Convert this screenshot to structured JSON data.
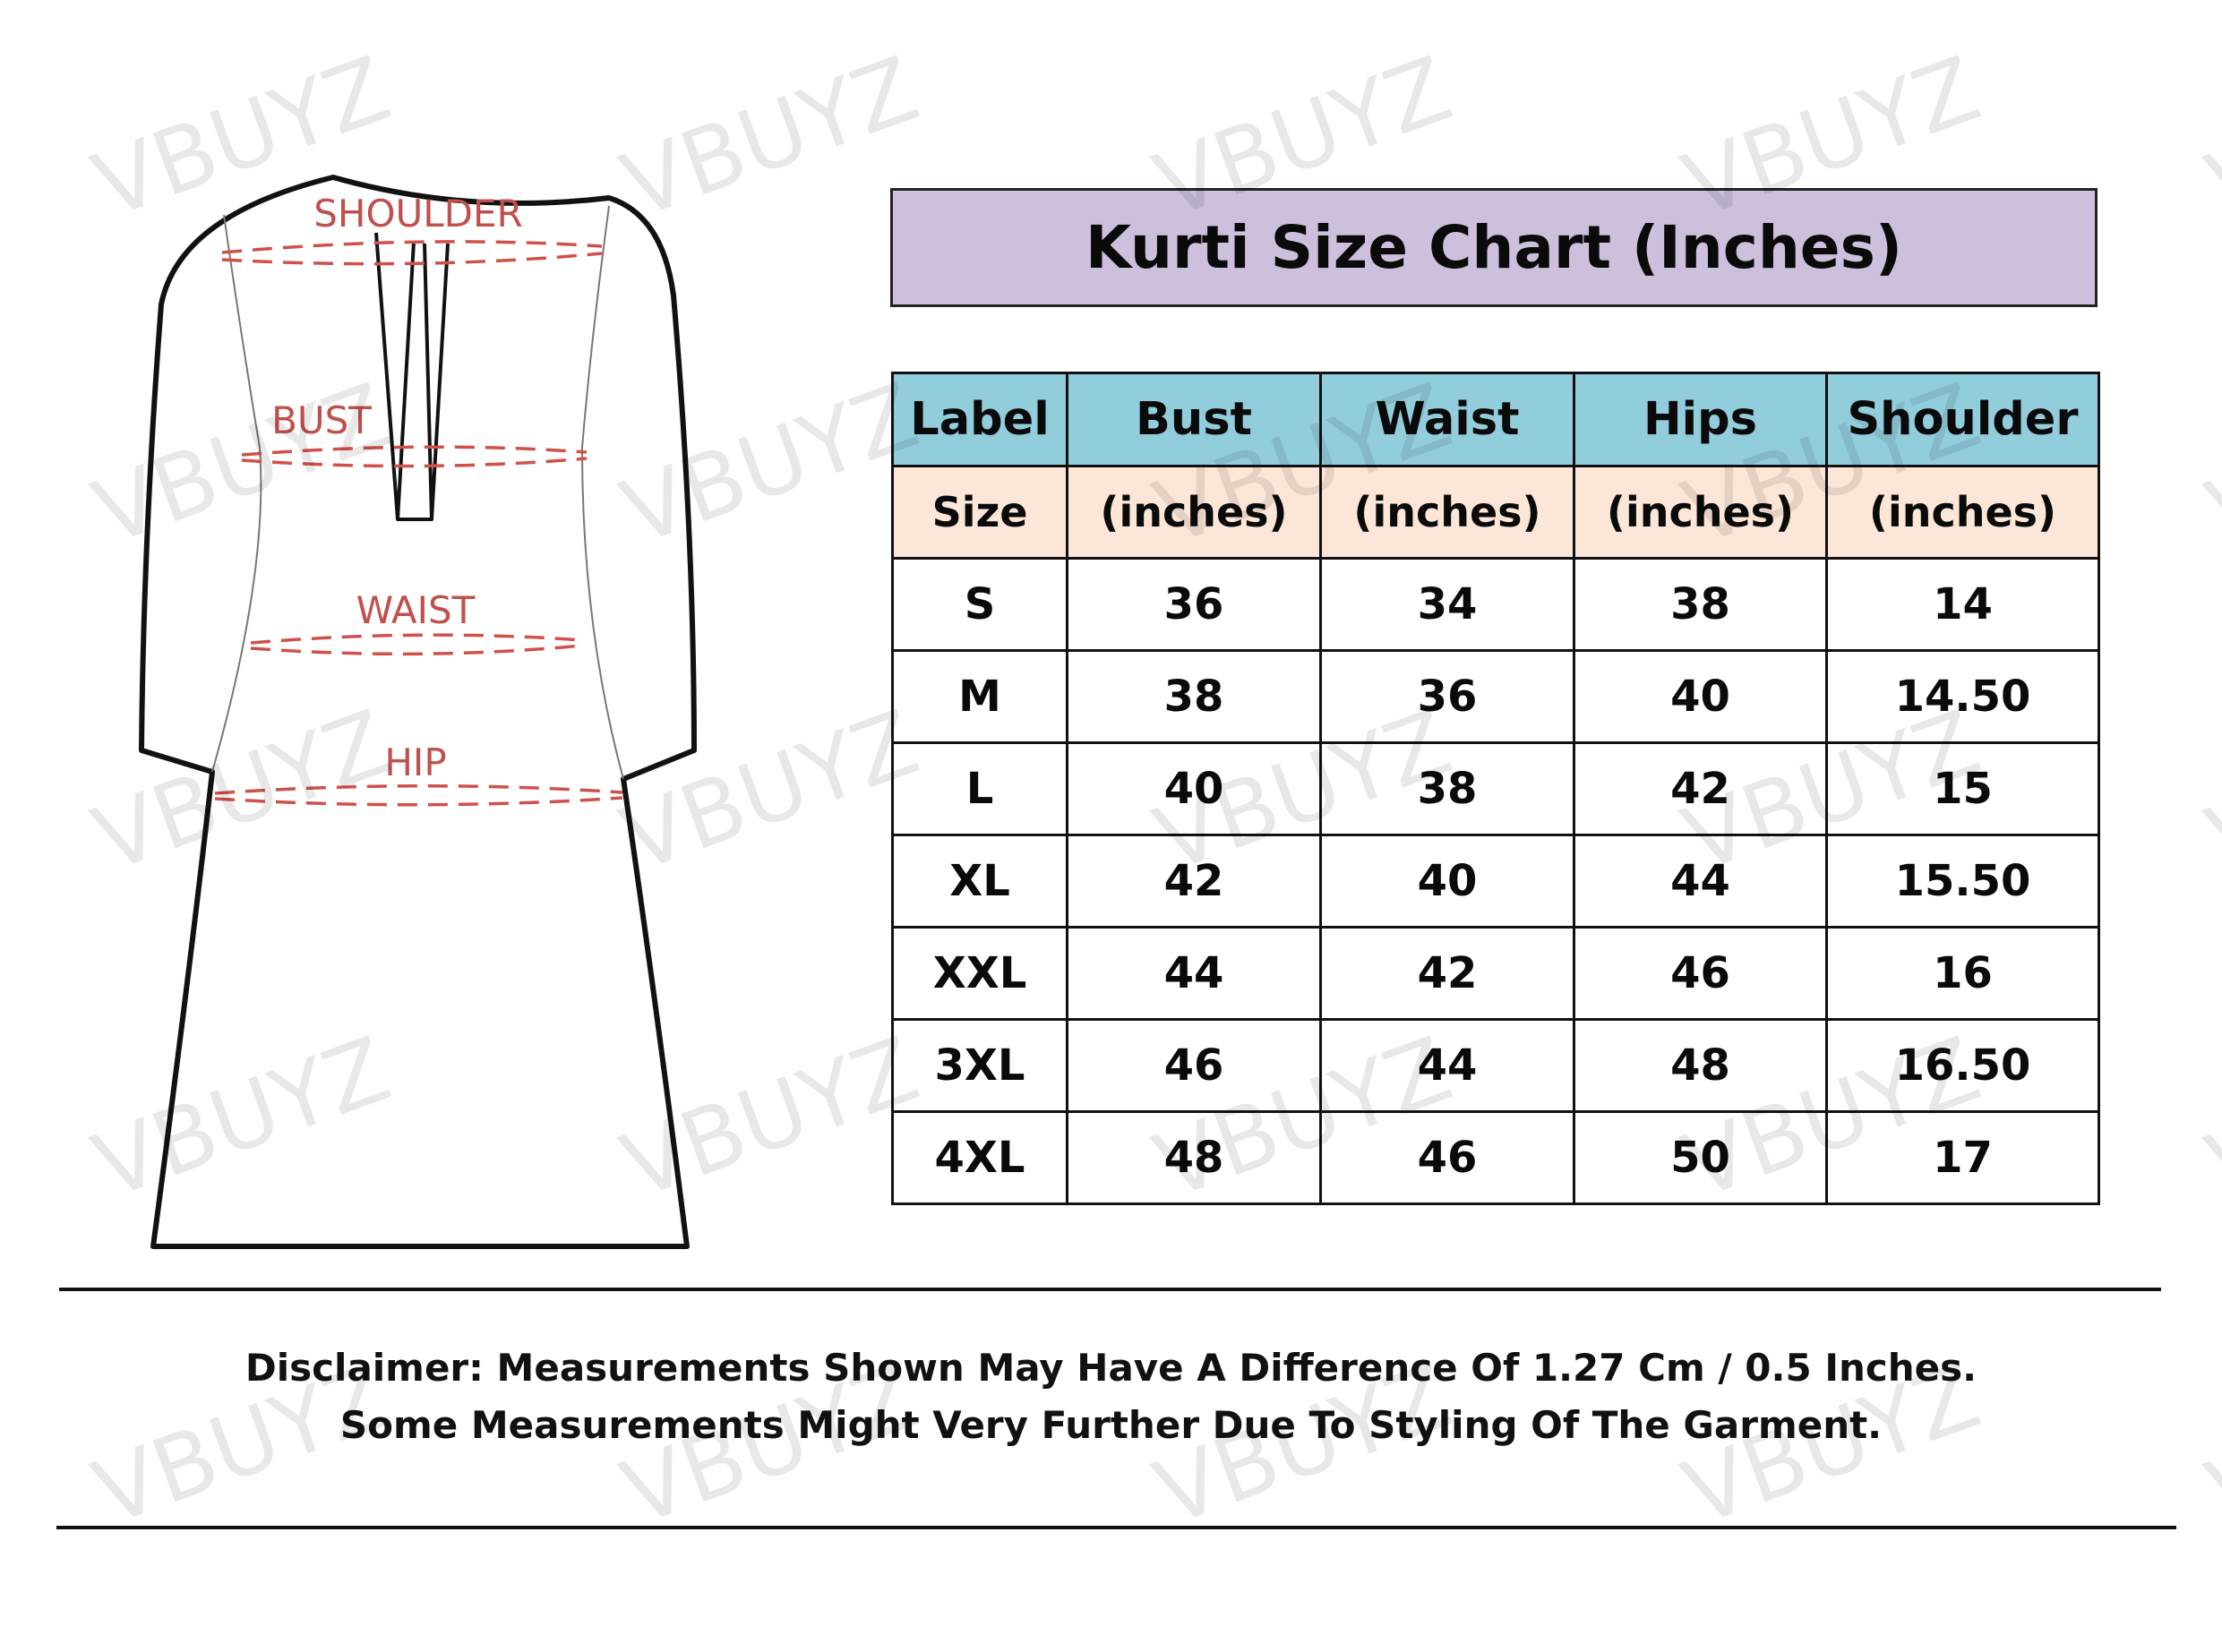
{
  "watermark": "VBUYZ",
  "diagram": {
    "labels": {
      "shoulder": "SHOULDER",
      "bust": "BUST",
      "waist": "WAIST",
      "hip": "HIP"
    },
    "label_color": "#c0504d"
  },
  "title": "Kurti Size Chart (Inches)",
  "table": {
    "header": [
      "Label",
      "Bust",
      "Waist",
      "Hips",
      "Shoulder"
    ],
    "subheader": [
      "Size",
      "(inches)",
      "(inches)",
      "(inches)",
      "(inches)"
    ],
    "rows": [
      [
        "S",
        "36",
        "34",
        "38",
        "14"
      ],
      [
        "M",
        "38",
        "36",
        "40",
        "14.50"
      ],
      [
        "L",
        "40",
        "38",
        "42",
        "15"
      ],
      [
        "XL",
        "42",
        "40",
        "44",
        "15.50"
      ],
      [
        "XXL",
        "44",
        "42",
        "46",
        "16"
      ],
      [
        "3XL",
        "46",
        "44",
        "48",
        "16.50"
      ],
      [
        "4XL",
        "48",
        "46",
        "50",
        "17"
      ]
    ]
  },
  "disclaimer": {
    "line1": "Disclaimer: Measurements Shown May Have A Difference Of 1.27 Cm / 0.5 Inches.",
    "line2": "Some Measurements Might Very Further Due To Styling Of The Garment."
  },
  "colors": {
    "title_bg": "#ccc0dc",
    "header_bg": "#92cddc",
    "subheader_bg": "#fce6d8"
  }
}
